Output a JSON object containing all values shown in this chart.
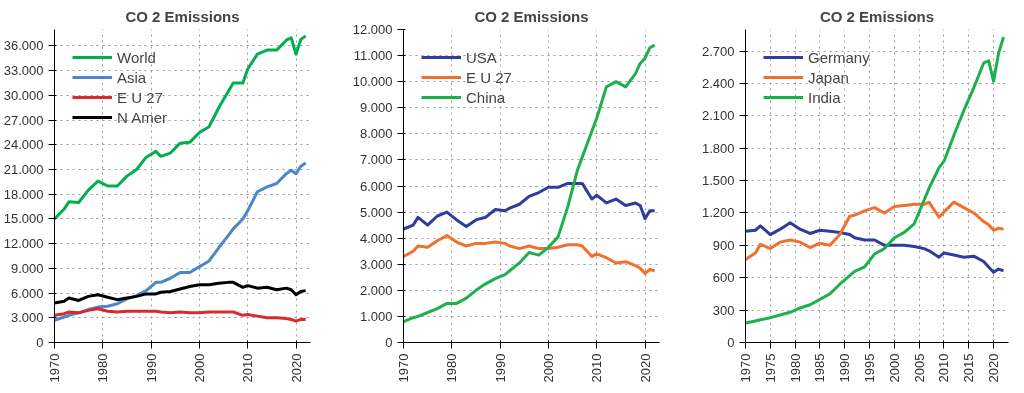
{
  "chart_data": [
    {
      "type": "line",
      "title": "CO 2 Emissions",
      "x": [
        1970,
        1972,
        1973,
        1975,
        1977,
        1979,
        1981,
        1983,
        1985,
        1987,
        1989,
        1991,
        1992,
        1994,
        1996,
        1998,
        2000,
        2002,
        2004,
        2006,
        2007,
        2009,
        2010,
        2012,
        2014,
        2016,
        2018,
        2019,
        2020,
        2021,
        2022
      ],
      "series": [
        {
          "name": "World",
          "color": "#00b050",
          "values": [
            15000,
            16200,
            17100,
            17000,
            18500,
            19600,
            19000,
            19000,
            20200,
            21000,
            22500,
            23200,
            22600,
            23000,
            24200,
            24300,
            25500,
            26200,
            28500,
            30500,
            31500,
            31500,
            33200,
            35000,
            35500,
            35500,
            36700,
            37000,
            35000,
            36800,
            37200
          ]
        },
        {
          "name": "Asia",
          "color": "#4a86c8",
          "values": [
            2700,
            3100,
            3300,
            3600,
            4000,
            4300,
            4400,
            4700,
            5300,
            5700,
            6300,
            7300,
            7300,
            7800,
            8500,
            8500,
            9200,
            9900,
            11500,
            13000,
            13800,
            15000,
            16000,
            18300,
            18900,
            19300,
            20500,
            20900,
            20500,
            21400,
            21800
          ]
        },
        {
          "name": "E U 27",
          "color": "#d62c2c",
          "values": [
            3300,
            3500,
            3700,
            3600,
            3900,
            4100,
            3800,
            3700,
            3800,
            3800,
            3800,
            3800,
            3700,
            3600,
            3700,
            3600,
            3600,
            3700,
            3700,
            3700,
            3700,
            3300,
            3400,
            3200,
            3000,
            3000,
            2900,
            2800,
            2600,
            2800,
            2800
          ]
        },
        {
          "name": "N Amer",
          "color": "#000000",
          "values": [
            4800,
            5000,
            5400,
            5100,
            5600,
            5800,
            5500,
            5200,
            5400,
            5600,
            5900,
            5900,
            6100,
            6200,
            6500,
            6800,
            7000,
            7000,
            7200,
            7300,
            7300,
            6700,
            6900,
            6600,
            6700,
            6400,
            6600,
            6400,
            5800,
            6200,
            6300
          ]
        }
      ],
      "xlim": [
        1970,
        2023
      ],
      "xticks": [
        1970,
        1980,
        1990,
        2000,
        2010,
        2020
      ],
      "ylim": [
        0,
        38000
      ],
      "yticks": [
        0,
        {
          "value": 3000,
          "label": "3.000"
        },
        {
          "value": 6000,
          "label": "6.000"
        },
        {
          "value": 9000,
          "label": "9.000"
        },
        {
          "value": 12000,
          "label": "12.000"
        },
        {
          "value": 15000,
          "label": "15.000"
        },
        {
          "value": 18000,
          "label": "18.000"
        },
        {
          "value": 21000,
          "label": "21.000"
        },
        {
          "value": 24000,
          "label": "24.000"
        },
        {
          "value": 27000,
          "label": "27.000"
        },
        {
          "value": 30000,
          "label": "30.000"
        },
        {
          "value": 33000,
          "label": "33.000"
        },
        {
          "value": 36000,
          "label": "36.000"
        }
      ],
      "grid": true,
      "legend": "top left",
      "line_style": "solid",
      "marker": "none"
    },
    {
      "type": "line",
      "title": "CO 2 Emissions",
      "x": [
        1970,
        1972,
        1973,
        1975,
        1977,
        1979,
        1981,
        1983,
        1985,
        1987,
        1989,
        1991,
        1992,
        1994,
        1996,
        1998,
        2000,
        2002,
        2004,
        2006,
        2007,
        2009,
        2010,
        2012,
        2014,
        2016,
        2018,
        2019,
        2020,
        2021,
        2022
      ],
      "series": [
        {
          "name": "USA",
          "color": "#2e3d9c",
          "values": [
            4350,
            4500,
            4800,
            4500,
            4850,
            5000,
            4700,
            4450,
            4700,
            4800,
            5100,
            5050,
            5150,
            5300,
            5600,
            5750,
            5950,
            5950,
            6100,
            6100,
            6100,
            5500,
            5650,
            5350,
            5500,
            5250,
            5350,
            5250,
            4750,
            5050,
            5050
          ]
        },
        {
          "name": "E U 27",
          "color": "#f07030",
          "values": [
            3300,
            3500,
            3700,
            3650,
            3900,
            4100,
            3850,
            3700,
            3800,
            3800,
            3850,
            3800,
            3700,
            3600,
            3700,
            3600,
            3600,
            3650,
            3750,
            3750,
            3700,
            3300,
            3400,
            3250,
            3050,
            3100,
            2950,
            2850,
            2650,
            2800,
            2750
          ]
        },
        {
          "name": "China",
          "color": "#1fb04e",
          "values": [
            800,
            950,
            1000,
            1150,
            1300,
            1500,
            1500,
            1700,
            2000,
            2250,
            2450,
            2600,
            2750,
            3050,
            3450,
            3350,
            3650,
            4050,
            5200,
            6600,
            7100,
            8100,
            8600,
            9800,
            10000,
            9800,
            10300,
            10700,
            10900,
            11300,
            11400
          ]
        }
      ],
      "xlim": [
        1970,
        2023
      ],
      "xticks": [
        1970,
        1980,
        1990,
        2000,
        2010,
        2020
      ],
      "ylim": [
        0,
        12000
      ],
      "yticks": [
        0,
        {
          "value": 1000,
          "label": "1.000"
        },
        {
          "value": 2000,
          "label": "2.000"
        },
        {
          "value": 3000,
          "label": "3.000"
        },
        {
          "value": 4000,
          "label": "4.000"
        },
        {
          "value": 5000,
          "label": "5.000"
        },
        {
          "value": 6000,
          "label": "6.000"
        },
        {
          "value": 7000,
          "label": "7.000"
        },
        {
          "value": 8000,
          "label": "8.000"
        },
        {
          "value": 9000,
          "label": "9.000"
        },
        {
          "value": 10000,
          "label": "10.000"
        },
        {
          "value": 11000,
          "label": "11.000"
        },
        {
          "value": 12000,
          "label": "12.000"
        }
      ],
      "grid": true,
      "legend": "top left",
      "line_style": "solid",
      "marker": "none"
    },
    {
      "type": "line",
      "title": "CO 2 Emissions",
      "x": [
        1970,
        1972,
        1973,
        1975,
        1977,
        1979,
        1981,
        1983,
        1985,
        1987,
        1989,
        1991,
        1992,
        1994,
        1996,
        1998,
        2000,
        2002,
        2004,
        2006,
        2007,
        2009,
        2010,
        2012,
        2014,
        2016,
        2018,
        2019,
        2020,
        2021,
        2022
      ],
      "series": [
        {
          "name": "Germany",
          "color": "#2e3d9c",
          "values": [
            1030,
            1040,
            1080,
            1000,
            1050,
            1110,
            1050,
            1010,
            1040,
            1030,
            1020,
            1000,
            970,
            950,
            950,
            900,
            900,
            900,
            890,
            870,
            850,
            790,
            830,
            810,
            790,
            800,
            750,
            700,
            650,
            680,
            665
          ]
        },
        {
          "name": "Japan",
          "color": "#f07030",
          "values": [
            770,
            830,
            910,
            870,
            930,
            950,
            930,
            880,
            920,
            900,
            1000,
            1170,
            1180,
            1220,
            1250,
            1200,
            1260,
            1270,
            1280,
            1280,
            1300,
            1160,
            1210,
            1300,
            1250,
            1200,
            1120,
            1090,
            1040,
            1060,
            1050
          ]
        },
        {
          "name": "India",
          "color": "#1fb04e",
          "values": [
            180,
            200,
            210,
            230,
            255,
            280,
            320,
            350,
            400,
            450,
            540,
            620,
            660,
            700,
            820,
            870,
            970,
            1020,
            1100,
            1320,
            1430,
            1620,
            1680,
            1920,
            2150,
            2360,
            2590,
            2610,
            2420,
            2680,
            2830
          ]
        }
      ],
      "xlim": [
        1970,
        2023
      ],
      "xticks": [
        1970,
        1975,
        1980,
        1985,
        1990,
        1995,
        2000,
        2005,
        2010,
        2015,
        2020
      ],
      "ylim": [
        0,
        2900
      ],
      "yticks": [
        0,
        300,
        600,
        900,
        {
          "value": 1200,
          "label": "1.200"
        },
        {
          "value": 1500,
          "label": "1.500"
        },
        {
          "value": 1800,
          "label": "1.800"
        },
        {
          "value": 2100,
          "label": "2.100"
        },
        {
          "value": 2400,
          "label": "2.400"
        },
        {
          "value": 2700,
          "label": "2.700"
        }
      ],
      "grid": true,
      "legend": "top left",
      "line_style": "solid",
      "marker": "none"
    }
  ]
}
